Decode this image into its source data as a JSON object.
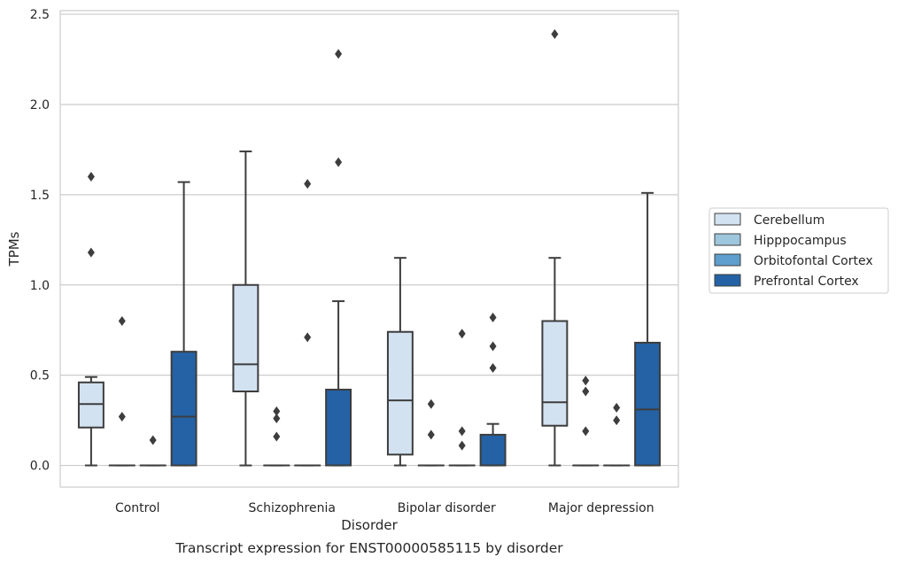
{
  "caption": "Transcript expression for ENST00000585115 by disorder",
  "chart_data": {
    "type": "box",
    "title": "",
    "xlabel": "Disorder",
    "ylabel": "TPMs",
    "ylim": [
      -0.12,
      2.52
    ],
    "yticks": [
      "0.0",
      "0.5",
      "1.0",
      "1.5",
      "2.0",
      "2.5"
    ],
    "grid": "horizontal",
    "legend_position": "right",
    "categories": [
      "Control",
      "Schizophrenia",
      "Bipolar disorder",
      "Major depression"
    ],
    "series": [
      {
        "name": "Cerebellum",
        "color": "#d3e2f1",
        "boxes": [
          {
            "min": 0.0,
            "q1": 0.21,
            "median": 0.34,
            "q3": 0.46,
            "max": 0.49,
            "outliers": [
              1.18,
              1.6
            ]
          },
          {
            "min": 0.0,
            "q1": 0.41,
            "median": 0.56,
            "q3": 1.0,
            "max": 1.74,
            "outliers": []
          },
          {
            "min": 0.0,
            "q1": 0.06,
            "median": 0.36,
            "q3": 0.74,
            "max": 1.15,
            "outliers": []
          },
          {
            "min": 0.0,
            "q1": 0.22,
            "median": 0.35,
            "q3": 0.8,
            "max": 1.15,
            "outliers": [
              2.39
            ]
          }
        ]
      },
      {
        "name": "Hipppocampus",
        "color": "#9ec6dd",
        "boxes": [
          {
            "min": 0.0,
            "q1": 0.0,
            "median": 0.0,
            "q3": 0.0,
            "max": 0.0,
            "outliers": [
              0.27,
              0.8
            ]
          },
          {
            "min": 0.0,
            "q1": 0.0,
            "median": 0.0,
            "q3": 0.0,
            "max": 0.0,
            "outliers": [
              0.16,
              0.26,
              0.3
            ]
          },
          {
            "min": 0.0,
            "q1": 0.0,
            "median": 0.0,
            "q3": 0.0,
            "max": 0.0,
            "outliers": [
              0.17,
              0.34
            ]
          },
          {
            "min": 0.0,
            "q1": 0.0,
            "median": 0.0,
            "q3": 0.0,
            "max": 0.0,
            "outliers": [
              0.19,
              0.41,
              0.47
            ]
          }
        ]
      },
      {
        "name": "Orbitofontal Cortex",
        "color": "#5d9ecc",
        "boxes": [
          {
            "min": 0.0,
            "q1": 0.0,
            "median": 0.0,
            "q3": 0.0,
            "max": 0.0,
            "outliers": [
              0.14
            ]
          },
          {
            "min": 0.0,
            "q1": 0.0,
            "median": 0.0,
            "q3": 0.0,
            "max": 0.0,
            "outliers": [
              0.71,
              1.56
            ]
          },
          {
            "min": 0.0,
            "q1": 0.0,
            "median": 0.0,
            "q3": 0.0,
            "max": 0.0,
            "outliers": [
              0.11,
              0.19,
              0.73
            ]
          },
          {
            "min": 0.0,
            "q1": 0.0,
            "median": 0.0,
            "q3": 0.0,
            "max": 0.0,
            "outliers": [
              0.25,
              0.32
            ]
          }
        ]
      },
      {
        "name": "Prefrontal Cortex",
        "color": "#2462a5",
        "boxes": [
          {
            "min": 0.0,
            "q1": 0.0,
            "median": 0.27,
            "q3": 0.63,
            "max": 1.57,
            "outliers": []
          },
          {
            "min": 0.0,
            "q1": 0.0,
            "median": 0.0,
            "q3": 0.42,
            "max": 0.91,
            "outliers": [
              1.68,
              2.28
            ]
          },
          {
            "min": 0.0,
            "q1": 0.0,
            "median": 0.0,
            "q3": 0.17,
            "max": 0.23,
            "outliers": [
              0.54,
              0.66,
              0.82
            ]
          },
          {
            "min": 0.0,
            "q1": 0.0,
            "median": 0.31,
            "q3": 0.68,
            "max": 1.51,
            "outliers": []
          }
        ]
      }
    ]
  }
}
